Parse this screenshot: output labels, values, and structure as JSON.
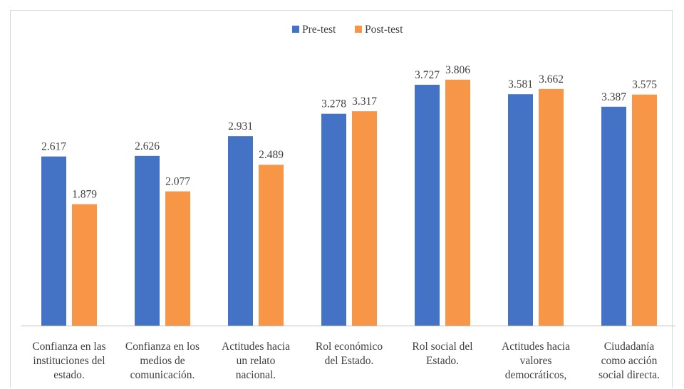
{
  "chart_data": {
    "type": "bar",
    "categories": [
      "Confianza en las instituciones del estado.",
      "Confianza en los medios de comunicación.",
      "Actitudes hacia un relato nacional.",
      "Rol económico del Estado.",
      "Rol social del Estado.",
      "Actitudes hacia valores democráticos,",
      "Ciudadanía como acción social directa."
    ],
    "category_lines": [
      [
        "Confianza en las",
        "instituciones del",
        "estado."
      ],
      [
        "Confianza en los",
        "medios de",
        "comunicación."
      ],
      [
        "Actitudes hacia",
        "un relato",
        "nacional."
      ],
      [
        "Rol económico",
        "del Estado."
      ],
      [
        "Rol social del",
        "Estado."
      ],
      [
        "Actitudes hacia",
        "valores",
        "democráticos,"
      ],
      [
        "Ciudadanía",
        "como acción",
        "social directa."
      ]
    ],
    "series": [
      {
        "name": "Pre-test",
        "color": "#4472C4",
        "values": [
          2.617,
          2.626,
          2.931,
          3.278,
          3.727,
          3.581,
          3.387
        ],
        "labels": [
          "2.617",
          "2.626",
          "2.931",
          "3.278",
          "3.727",
          "3.581",
          "3.387"
        ]
      },
      {
        "name": "Post-test",
        "color": "#F79646",
        "values": [
          1.879,
          2.077,
          2.489,
          3.317,
          3.806,
          3.662,
          3.575
        ],
        "labels": [
          "1.879",
          "2.077",
          "2.489",
          "3.317",
          "3.806",
          "3.662",
          "3.575"
        ]
      }
    ],
    "ylim": [
      0,
      4.2
    ],
    "grid": false,
    "legend_position": "top-center"
  }
}
